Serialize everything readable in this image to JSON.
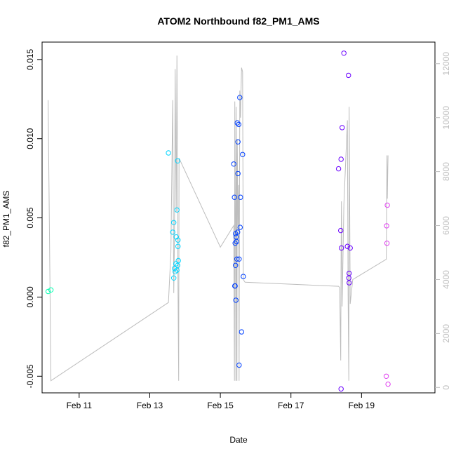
{
  "chart_data": {
    "type": "scatter",
    "title": "ATOM2 Northbound f82_PM1_AMS",
    "xlabel": "Date",
    "ylabel": "f82_PM1_AMS",
    "x_ticks": [
      {
        "label": "Feb 11",
        "value": 11
      },
      {
        "label": "Feb 13",
        "value": 13
      },
      {
        "label": "Feb 15",
        "value": 15
      },
      {
        "label": "Feb 17",
        "value": 17
      },
      {
        "label": "Feb 19",
        "value": 19
      }
    ],
    "xlim": [
      9.95,
      21.08
    ],
    "ylim": [
      -0.00605,
      0.0161
    ],
    "y_ticks": [
      {
        "label": "-0.005",
        "value": -0.005
      },
      {
        "label": "0.000",
        "value": 0.0
      },
      {
        "label": "0.005",
        "value": 0.005
      },
      {
        "label": "0.010",
        "value": 0.01
      },
      {
        "label": "0.015",
        "value": 0.015
      }
    ],
    "y2lim": [
      -200,
      12800
    ],
    "y2_ticks": [
      {
        "label": "0",
        "value": 0
      },
      {
        "label": "2000",
        "value": 2000
      },
      {
        "label": "4000",
        "value": 4000
      },
      {
        "label": "6000",
        "value": 6000
      },
      {
        "label": "8000",
        "value": 8000
      },
      {
        "label": "10000",
        "value": 10000
      },
      {
        "label": "12000",
        "value": 12000
      }
    ],
    "points": [
      {
        "x": 10.12,
        "y": 0.00035,
        "color": "#00ffb0"
      },
      {
        "x": 10.2,
        "y": 0.00045,
        "color": "#00ffb0"
      },
      {
        "x": 13.53,
        "y": 0.0091,
        "color": "#00d5ff"
      },
      {
        "x": 13.65,
        "y": 0.0041,
        "color": "#00d5ff"
      },
      {
        "x": 13.68,
        "y": 0.0047,
        "color": "#00d5ff"
      },
      {
        "x": 13.68,
        "y": 0.0012,
        "color": "#00d5ff"
      },
      {
        "x": 13.7,
        "y": 0.0018,
        "color": "#00d5ff"
      },
      {
        "x": 13.72,
        "y": 0.0016,
        "color": "#00d5ff"
      },
      {
        "x": 13.74,
        "y": 0.0021,
        "color": "#00d5ff"
      },
      {
        "x": 13.75,
        "y": 0.0038,
        "color": "#00d5ff"
      },
      {
        "x": 13.77,
        "y": 0.0017,
        "color": "#00d5ff"
      },
      {
        "x": 13.77,
        "y": 0.0055,
        "color": "#00d5ff"
      },
      {
        "x": 13.79,
        "y": 0.0086,
        "color": "#00d5ff"
      },
      {
        "x": 13.8,
        "y": 0.0036,
        "color": "#00d5ff"
      },
      {
        "x": 13.8,
        "y": 0.0032,
        "color": "#00d5ff"
      },
      {
        "x": 13.81,
        "y": 0.0023,
        "color": "#00d5ff"
      },
      {
        "x": 13.79,
        "y": 0.002,
        "color": "#00d5ff"
      },
      {
        "x": 15.38,
        "y": 0.0084,
        "color": "#0040ff"
      },
      {
        "x": 15.4,
        "y": 0.0063,
        "color": "#0040ff"
      },
      {
        "x": 15.41,
        "y": 0.0007,
        "color": "#0040ff"
      },
      {
        "x": 15.42,
        "y": 0.0007,
        "color": "#0040ff"
      },
      {
        "x": 15.42,
        "y": 0.0034,
        "color": "#0040ff"
      },
      {
        "x": 15.43,
        "y": 0.004,
        "color": "#0040ff"
      },
      {
        "x": 15.43,
        "y": 0.002,
        "color": "#0040ff"
      },
      {
        "x": 15.44,
        "y": -0.0002,
        "color": "#0040ff"
      },
      {
        "x": 15.45,
        "y": 0.0038,
        "color": "#0040ff"
      },
      {
        "x": 15.46,
        "y": 0.0035,
        "color": "#0040ff"
      },
      {
        "x": 15.47,
        "y": 0.0024,
        "color": "#0040ff"
      },
      {
        "x": 15.48,
        "y": 0.011,
        "color": "#0040ff"
      },
      {
        "x": 15.49,
        "y": 0.0041,
        "color": "#0040ff"
      },
      {
        "x": 15.5,
        "y": 0.0098,
        "color": "#0040ff"
      },
      {
        "x": 15.5,
        "y": 0.0078,
        "color": "#0040ff"
      },
      {
        "x": 15.52,
        "y": 0.0109,
        "color": "#0040ff"
      },
      {
        "x": 15.53,
        "y": 0.0024,
        "color": "#0040ff"
      },
      {
        "x": 15.53,
        "y": -0.0043,
        "color": "#0040ff"
      },
      {
        "x": 15.55,
        "y": 0.0126,
        "color": "#0040ff"
      },
      {
        "x": 15.56,
        "y": 0.0044,
        "color": "#0040ff"
      },
      {
        "x": 15.57,
        "y": 0.0063,
        "color": "#0040ff"
      },
      {
        "x": 15.6,
        "y": -0.0022,
        "color": "#0040ff"
      },
      {
        "x": 15.63,
        "y": 0.009,
        "color": "#0040ff"
      },
      {
        "x": 15.65,
        "y": 0.0013,
        "color": "#0040ff"
      },
      {
        "x": 18.35,
        "y": 0.0081,
        "color": "#6a00ff"
      },
      {
        "x": 18.41,
        "y": 0.0042,
        "color": "#6a00ff"
      },
      {
        "x": 18.42,
        "y": 0.0087,
        "color": "#6a00ff"
      },
      {
        "x": 18.42,
        "y": -0.0058,
        "color": "#6a00ff"
      },
      {
        "x": 18.43,
        "y": 0.0031,
        "color": "#6a00ff"
      },
      {
        "x": 18.45,
        "y": 0.0107,
        "color": "#6a00ff"
      },
      {
        "x": 18.5,
        "y": 0.0154,
        "color": "#6a00ff"
      },
      {
        "x": 18.6,
        "y": 0.0032,
        "color": "#6a00ff"
      },
      {
        "x": 18.63,
        "y": 0.014,
        "color": "#6a00ff"
      },
      {
        "x": 18.64,
        "y": 0.0012,
        "color": "#6a00ff"
      },
      {
        "x": 18.65,
        "y": 0.0015,
        "color": "#6a00ff"
      },
      {
        "x": 18.65,
        "y": 0.0009,
        "color": "#6a00ff"
      },
      {
        "x": 18.68,
        "y": 0.0031,
        "color": "#6a00ff"
      },
      {
        "x": 19.7,
        "y": -0.005,
        "color": "#e040f0"
      },
      {
        "x": 19.71,
        "y": 0.0045,
        "color": "#e040f0"
      },
      {
        "x": 19.72,
        "y": 0.0034,
        "color": "#e040f0"
      },
      {
        "x": 19.73,
        "y": 0.0058,
        "color": "#e040f0"
      },
      {
        "x": 19.75,
        "y": -0.0055,
        "color": "#e040f0"
      }
    ],
    "secondary_series": {
      "axis": "right",
      "color": "#bdbdbd",
      "x": [
        10.12,
        10.2,
        13.53,
        13.6,
        13.65,
        13.68,
        13.7,
        13.72,
        13.75,
        13.77,
        13.8,
        13.82,
        13.83,
        15.0,
        15.38,
        15.4,
        15.41,
        15.42,
        15.43,
        15.44,
        15.45,
        15.46,
        15.47,
        15.48,
        15.5,
        15.52,
        15.53,
        15.55,
        15.57,
        15.6,
        15.63,
        15.65,
        15.7,
        18.35,
        18.38,
        18.41,
        18.42,
        18.43,
        18.45,
        18.5,
        18.6,
        18.62,
        18.64,
        18.65,
        18.68,
        18.75,
        19.7,
        19.72,
        19.73,
        19.75
      ],
      "y": [
        10650,
        250,
        3150,
        5000,
        10650,
        3500,
        5500,
        11800,
        6500,
        12300,
        3800,
        250,
        8500,
        5200,
        6000,
        250,
        10600,
        7800,
        5500,
        250,
        10400,
        7000,
        250,
        9200,
        6000,
        7500,
        250,
        11000,
        10000,
        11850,
        11700,
        4000,
        3900,
        3750,
        3700,
        1000,
        4900,
        6900,
        3000,
        6800,
        9900,
        3400,
        250,
        10400,
        3100,
        4000,
        4750,
        8600,
        7000,
        8600
      ]
    }
  }
}
